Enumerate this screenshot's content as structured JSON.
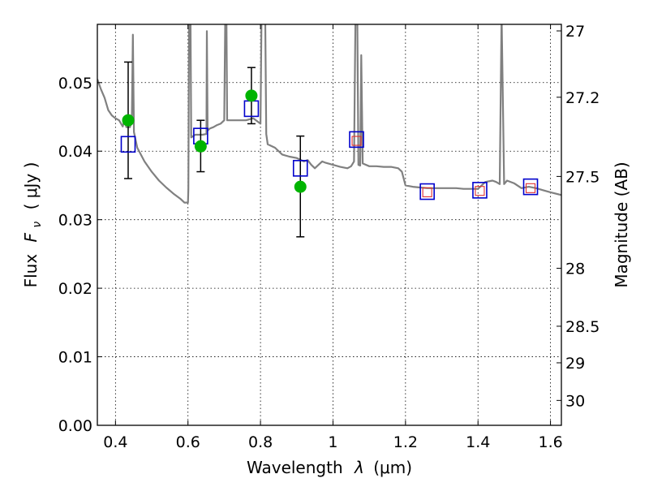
{
  "chart_data": {
    "type": "scatter",
    "xlabel_text": "Wavelength",
    "xlabel_symbol": "λ",
    "xlabel_unit": "(μm)",
    "ylabel_text": "Flux",
    "ylabel_symbol": "F",
    "ylabel_sub": "ν",
    "ylabel_unit": "( μJy )",
    "y2label": "Magnitude (AB)",
    "xlim": [
      0.35,
      1.63
    ],
    "ylim": [
      0.0,
      0.0585
    ],
    "x_ticks": [
      0.4,
      0.6,
      0.8,
      1.0,
      1.2,
      1.4,
      1.6
    ],
    "x_tick_labels": [
      "0.4",
      "0.6",
      "0.8",
      "1",
      "1.2",
      "1.4",
      "1.6"
    ],
    "y_ticks": [
      0.0,
      0.01,
      0.02,
      0.03,
      0.04,
      0.05
    ],
    "y_tick_labels": [
      "0.00",
      "0.01",
      "0.02",
      "0.03",
      "0.04",
      "0.05"
    ],
    "mag_ticks": [
      27,
      27.2,
      27.5,
      28,
      28.5,
      29,
      30
    ],
    "mag_tick_labels": [
      "27",
      "27.2",
      "27.5",
      "28",
      "28.5",
      "29",
      "30"
    ],
    "grid": true,
    "colors": {
      "model": "#808080",
      "observed": "#00b400",
      "model_photometry": "#0000cc",
      "nir_photometry": "#e03030",
      "errorbar": "#000000"
    },
    "series": [
      {
        "style": "line",
        "points": [
          [
            0.35,
            0.0505
          ],
          [
            0.36,
            0.049
          ],
          [
            0.37,
            0.0478
          ],
          [
            0.38,
            0.046
          ],
          [
            0.39,
            0.0452
          ],
          [
            0.4,
            0.0448
          ],
          [
            0.41,
            0.0445
          ],
          [
            0.42,
            0.0436
          ],
          [
            0.425,
            0.0446
          ],
          [
            0.43,
            0.0435
          ],
          [
            0.44,
            0.0435
          ],
          [
            0.445,
            0.0445
          ],
          [
            0.448,
            0.057
          ],
          [
            0.451,
            0.0428
          ],
          [
            0.46,
            0.0405
          ],
          [
            0.48,
            0.0385
          ],
          [
            0.5,
            0.037
          ],
          [
            0.52,
            0.0357
          ],
          [
            0.54,
            0.0347
          ],
          [
            0.56,
            0.0338
          ],
          [
            0.58,
            0.033
          ],
          [
            0.59,
            0.0325
          ],
          [
            0.6,
            0.0325
          ],
          [
            0.601,
            0.0345
          ],
          [
            0.603,
            0.06
          ],
          [
            0.607,
            0.06
          ],
          [
            0.609,
            0.042
          ],
          [
            0.62,
            0.0424
          ],
          [
            0.64,
            0.0424
          ],
          [
            0.651,
            0.0425
          ],
          [
            0.652,
            0.0575
          ],
          [
            0.654,
            0.043
          ],
          [
            0.66,
            0.0433
          ],
          [
            0.67,
            0.0435
          ],
          [
            0.68,
            0.0438
          ],
          [
            0.69,
            0.044
          ],
          [
            0.7,
            0.0445
          ],
          [
            0.703,
            0.06
          ],
          [
            0.706,
            0.06
          ],
          [
            0.708,
            0.0445
          ],
          [
            0.72,
            0.0445
          ],
          [
            0.74,
            0.0445
          ],
          [
            0.76,
            0.0445
          ],
          [
            0.78,
            0.0448
          ],
          [
            0.8,
            0.044
          ],
          [
            0.803,
            0.06
          ],
          [
            0.808,
            0.06
          ],
          [
            0.813,
            0.06
          ],
          [
            0.816,
            0.0425
          ],
          [
            0.82,
            0.041
          ],
          [
            0.84,
            0.0405
          ],
          [
            0.86,
            0.0395
          ],
          [
            0.88,
            0.0392
          ],
          [
            0.9,
            0.039
          ],
          [
            0.92,
            0.0385
          ],
          [
            0.93,
            0.0387
          ],
          [
            0.94,
            0.038
          ],
          [
            0.95,
            0.0375
          ],
          [
            0.96,
            0.038
          ],
          [
            0.97,
            0.0385
          ],
          [
            0.98,
            0.0383
          ],
          [
            1.0,
            0.038
          ],
          [
            1.02,
            0.0377
          ],
          [
            1.04,
            0.0375
          ],
          [
            1.05,
            0.0378
          ],
          [
            1.058,
            0.0385
          ],
          [
            1.062,
            0.06
          ],
          [
            1.067,
            0.06
          ],
          [
            1.07,
            0.038
          ],
          [
            1.075,
            0.0379
          ],
          [
            1.078,
            0.054
          ],
          [
            1.082,
            0.0382
          ],
          [
            1.1,
            0.0378
          ],
          [
            1.12,
            0.0378
          ],
          [
            1.14,
            0.0377
          ],
          [
            1.16,
            0.0377
          ],
          [
            1.18,
            0.0375
          ],
          [
            1.19,
            0.037
          ],
          [
            1.2,
            0.035
          ],
          [
            1.22,
            0.0348
          ],
          [
            1.24,
            0.0347
          ],
          [
            1.26,
            0.0346
          ],
          [
            1.28,
            0.0346
          ],
          [
            1.3,
            0.0346
          ],
          [
            1.32,
            0.0346
          ],
          [
            1.34,
            0.0346
          ],
          [
            1.36,
            0.0345
          ],
          [
            1.38,
            0.0345
          ],
          [
            1.4,
            0.0345
          ],
          [
            1.42,
            0.0355
          ],
          [
            1.44,
            0.0357
          ],
          [
            1.45,
            0.0355
          ],
          [
            1.46,
            0.0352
          ],
          [
            1.465,
            0.06
          ],
          [
            1.472,
            0.0352
          ],
          [
            1.48,
            0.0357
          ],
          [
            1.5,
            0.0353
          ],
          [
            1.52,
            0.0346
          ],
          [
            1.54,
            0.0348
          ],
          [
            1.56,
            0.0346
          ],
          [
            1.58,
            0.0343
          ],
          [
            1.6,
            0.034
          ],
          [
            1.63,
            0.0336
          ]
        ]
      },
      {
        "style": "errorbar",
        "points": [
          {
            "x": 0.435,
            "y": 0.0445,
            "ylow": 0.036,
            "yhigh": 0.053
          },
          {
            "x": 0.635,
            "y": 0.0407,
            "ylow": 0.037,
            "yhigh": 0.0445
          },
          {
            "x": 0.775,
            "y": 0.0481,
            "ylow": 0.044,
            "yhigh": 0.0522
          },
          {
            "x": 0.91,
            "y": 0.0348,
            "ylow": 0.0275,
            "yhigh": 0.0422
          }
        ]
      },
      {
        "style": "open-square",
        "points": [
          {
            "x": 0.435,
            "y": 0.041
          },
          {
            "x": 0.635,
            "y": 0.0422
          },
          {
            "x": 0.775,
            "y": 0.0462
          },
          {
            "x": 0.91,
            "y": 0.0375
          },
          {
            "x": 1.065,
            "y": 0.0417
          },
          {
            "x": 1.26,
            "y": 0.0341
          },
          {
            "x": 1.405,
            "y": 0.0343
          },
          {
            "x": 1.545,
            "y": 0.0348
          }
        ]
      },
      {
        "style": "small-square",
        "points": [
          {
            "x": 1.065,
            "y": 0.0415
          },
          {
            "x": 1.26,
            "y": 0.034
          },
          {
            "x": 1.405,
            "y": 0.0342
          },
          {
            "x": 1.545,
            "y": 0.0346
          }
        ]
      }
    ]
  }
}
